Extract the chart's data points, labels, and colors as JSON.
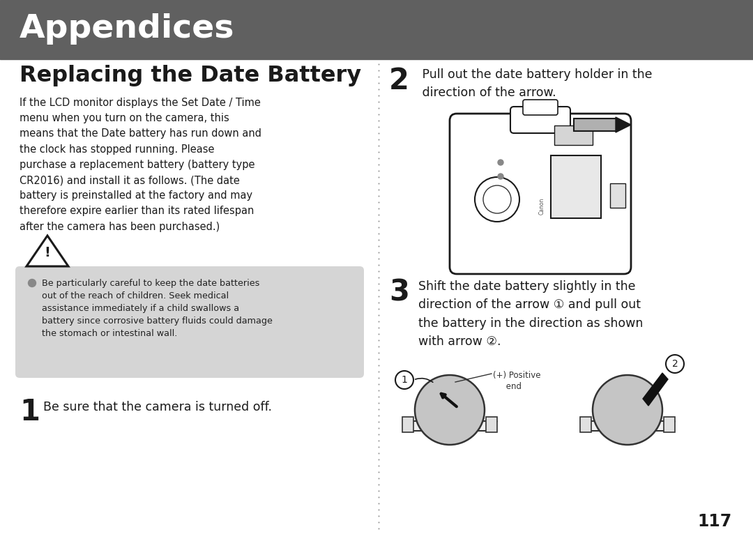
{
  "page_bg": "#ffffff",
  "header_bg": "#606060",
  "header_text": "Appendices",
  "header_text_color": "#ffffff",
  "section_title": "Replacing the Date Battery",
  "body_text_left": "If the LCD monitor displays the Set Date / Time\nmenu when you turn on the camera, this\nmeans that the Date battery has run down and\nthe clock has stopped running. Please\npurchase a replacement battery (battery type\nCR2016) and install it as follows. (The date\nbattery is preinstalled at the factory and may\ntherefore expire earlier than its rated lifespan\nafter the camera has been purchased.)",
  "warning_box_bg": "#d5d5d5",
  "warning_text": "Be particularly careful to keep the date batteries\nout of the reach of children. Seek medical\nassistance immediately if a child swallows a\nbattery since corrosive battery fluids could damage\nthe stomach or intestinal wall.",
  "step1_text": "Be sure that the camera is turned off.",
  "step2_text": " Pull out the date battery holder in the\n direction of the arrow.",
  "step3_text": "Shift the date battery slightly in the\ndirection of the arrow ① and pull out\nthe battery in the direction as shown\nwith arrow ②.",
  "step3_label": "(+) Positive\n     end",
  "page_number": "117",
  "text_color": "#1a1a1a",
  "small_text_color": "#222222"
}
